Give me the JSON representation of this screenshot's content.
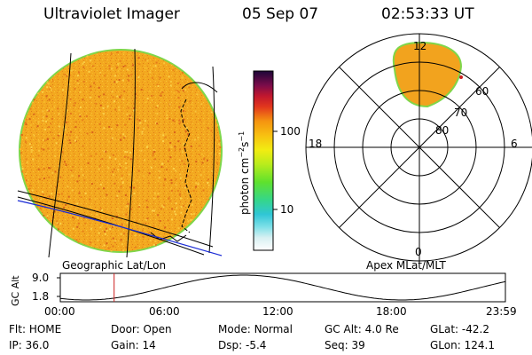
{
  "header": {
    "instrument": "Ultraviolet Imager",
    "date": "05 Sep 07",
    "time": "02:53:33 UT"
  },
  "colorbar": {
    "unit_label": "photon cm",
    "unit_sup1": "−2",
    "unit_mid": "s",
    "unit_sup2": "−1",
    "ticks": [
      "100",
      "10"
    ]
  },
  "left_panel": {
    "label": "Geographic Lat/Lon"
  },
  "polar_panel": {
    "label": "Apex MLat/MLT",
    "mlt_labels": {
      "top": "12",
      "bottom": "0",
      "left": "18",
      "right": "6"
    },
    "lat_labels": [
      "60",
      "70",
      "80"
    ]
  },
  "timeline": {
    "ylabel": "GC Alt",
    "y_ticks": [
      "9.0",
      "1.8"
    ],
    "x_ticks": [
      "00:00",
      "06:00",
      "12:00",
      "18:00",
      "23:59"
    ],
    "current_hour": 2.9
  },
  "info": {
    "row1": [
      {
        "label": "Flt:",
        "value": "HOME"
      },
      {
        "label": "Door:",
        "value": "Open"
      },
      {
        "label": "Mode:",
        "value": "Normal"
      },
      {
        "label": "GC Alt:",
        "value": "4.0 Re"
      },
      {
        "label": "GLat:",
        "value": "-42.2"
      }
    ],
    "row2": [
      {
        "label": "IP:",
        "value": "36.0"
      },
      {
        "label": "Gain:",
        "value": "14"
      },
      {
        "label": "Dsp:",
        "value": "-5.4"
      },
      {
        "label": "Seq:",
        "value": "39"
      },
      {
        "label": "GLon:",
        "value": "124.1"
      }
    ]
  },
  "colors": {
    "disk": "#f2a31e",
    "disk_edge": "#7fd64a",
    "coast": "#1a2bd6",
    "marker": "#cc1f1f"
  }
}
